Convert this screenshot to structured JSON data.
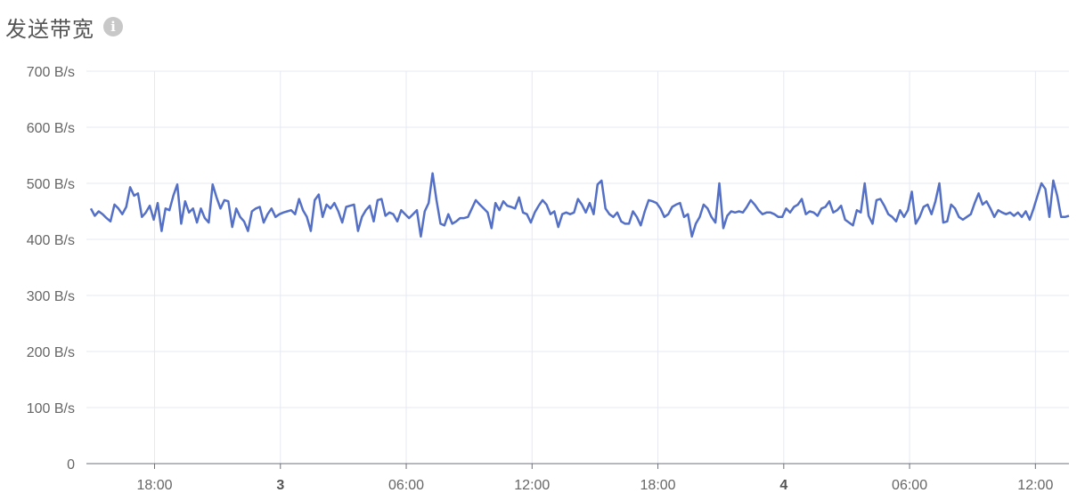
{
  "header": {
    "title": "发送带宽",
    "info_icon": "info-icon"
  },
  "chart_data": {
    "type": "line",
    "title": "发送带宽",
    "y_ticks": [
      "0",
      "100 B/s",
      "200 B/s",
      "300 B/s",
      "400 B/s",
      "500 B/s",
      "600 B/s",
      "700 B/s"
    ],
    "ylim": [
      0,
      700
    ],
    "y_unit": "B/s",
    "x_ticks": [
      {
        "label": "18:00",
        "t": 0,
        "bold": false
      },
      {
        "label": "3",
        "t": 6,
        "bold": true
      },
      {
        "label": "06:00",
        "t": 12,
        "bold": false
      },
      {
        "label": "12:00",
        "t": 18,
        "bold": false
      },
      {
        "label": "18:00",
        "t": 24,
        "bold": false
      },
      {
        "label": "4",
        "t": 30,
        "bold": true
      },
      {
        "label": "06:00",
        "t": 36,
        "bold": false
      },
      {
        "label": "12:00",
        "t": 42,
        "bold": false
      }
    ],
    "grid": true,
    "line_color": "#5470c6",
    "x_start": -3.25,
    "x_end": 43.6,
    "series": [
      {
        "values": [
          455,
          442,
          450,
          445,
          438,
          432,
          462,
          455,
          445,
          458,
          493,
          478,
          482,
          440,
          448,
          460,
          435,
          465,
          415,
          455,
          452,
          478,
          498,
          428,
          468,
          448,
          455,
          430,
          455,
          438,
          430,
          498,
          475,
          455,
          470,
          468,
          422,
          455,
          440,
          432,
          415,
          450,
          455,
          458,
          430,
          445,
          455,
          440,
          445,
          448,
          450,
          452,
          445,
          472,
          452,
          440,
          415,
          470,
          480,
          440,
          462,
          455,
          465,
          450,
          430,
          458,
          460,
          462,
          415,
          440,
          452,
          460,
          432,
          470,
          472,
          442,
          448,
          445,
          432,
          452,
          445,
          438,
          445,
          452,
          405,
          450,
          465,
          518,
          470,
          428,
          425,
          445,
          428,
          432,
          438,
          438,
          440,
          455,
          470,
          462,
          455,
          448,
          420,
          465,
          452,
          468,
          460,
          458,
          455,
          475,
          448,
          445,
          430,
          448,
          460,
          470,
          462,
          445,
          450,
          422,
          445,
          448,
          445,
          448,
          472,
          462,
          448,
          465,
          445,
          498,
          505,
          455,
          445,
          440,
          448,
          432,
          428,
          428,
          450,
          440,
          425,
          450,
          470,
          468,
          465,
          455,
          440,
          445,
          458,
          462,
          465,
          440,
          445,
          405,
          428,
          440,
          462,
          455,
          440,
          430,
          500,
          420,
          442,
          450,
          448,
          450,
          448,
          458,
          470,
          462,
          452,
          445,
          448,
          448,
          445,
          440,
          440,
          455,
          448,
          458,
          462,
          472,
          445,
          450,
          448,
          442,
          455,
          458,
          468,
          448,
          452,
          460,
          435,
          430,
          425,
          452,
          448,
          500,
          442,
          428,
          470,
          472,
          460,
          445,
          440,
          432,
          452,
          440,
          452,
          485,
          428,
          440,
          458,
          462,
          445,
          468,
          500,
          430,
          432,
          462,
          455,
          440,
          435,
          440,
          445,
          465,
          482,
          462,
          468,
          455,
          440,
          452,
          448,
          445,
          448,
          442,
          448,
          440,
          450,
          435,
          455,
          478,
          500,
          490,
          440,
          505,
          478,
          440,
          440,
          442
        ]
      }
    ]
  }
}
